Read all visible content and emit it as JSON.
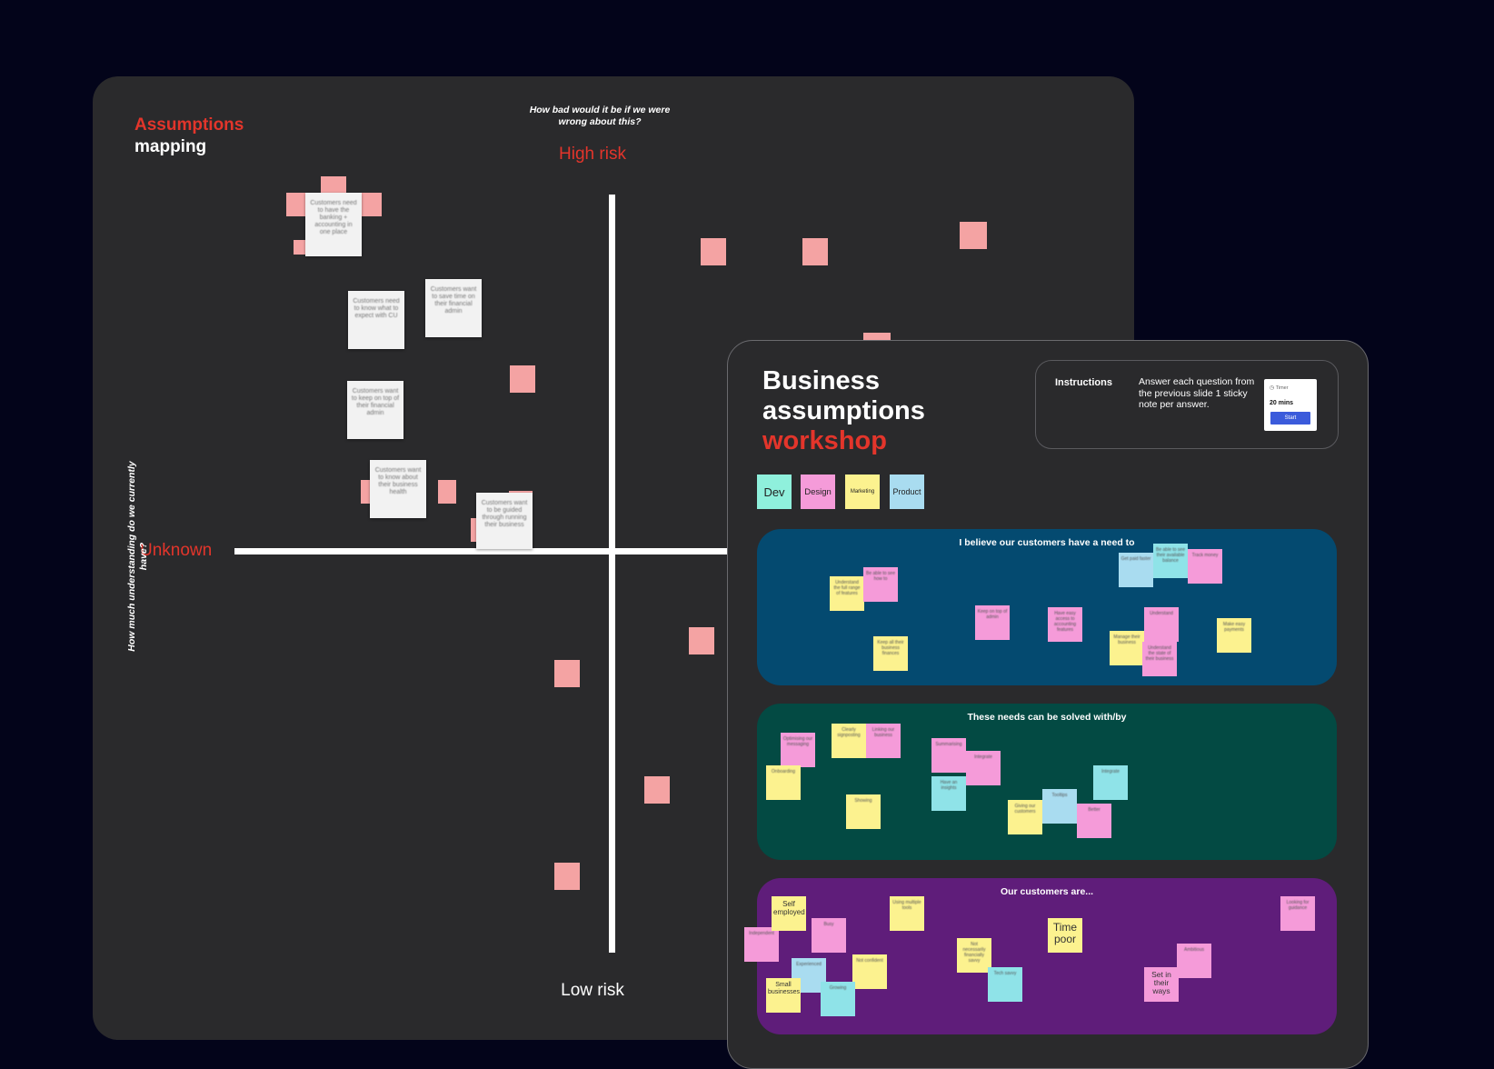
{
  "assumptions_board": {
    "title_accent": "Assumptions",
    "title_rest": "mapping",
    "top_question": "How bad would it be if we were wrong about this?",
    "high_risk_label": "High risk",
    "low_risk_label": "Low risk",
    "unknown_label": "Unknown",
    "side_question": "How much understanding do we currently have?",
    "notes": [
      "Customers need to have the banking + accounting in one place",
      "Customers want to save time on their financial admin",
      "Customers need to know what to expect with CU",
      "Customers want to keep on top of their financial admin",
      "Customers want to know about their business health",
      "Customers want to be guided through running their business"
    ]
  },
  "workshop_panel": {
    "title_line1": "Business",
    "title_line2": "assumptions",
    "title_accent": "workshop",
    "instructions_label": "Instructions",
    "instructions_text": "Answer each question from the previous slide 1 sticky note per answer.",
    "timer": {
      "label": "Timer",
      "value": "20 mins",
      "start_label": "Start"
    },
    "tags": [
      {
        "label": "Dev",
        "color": "#8ff0dc"
      },
      {
        "label": "Design",
        "color": "#f59bd9"
      },
      {
        "label": "Marketing",
        "color": "#fcf28f"
      },
      {
        "label": "Product",
        "color": "#a9dcf0"
      }
    ],
    "sections": [
      {
        "title": "I believe our customers have a need to",
        "color": "#044a70"
      },
      {
        "title": "These needs can be solved with/by",
        "color": "#034a43"
      },
      {
        "title": "Our customers are...",
        "color": "#5f1d7a"
      }
    ],
    "sticky_labels": {
      "self_employed": "Self employed",
      "time_poor": "Time poor",
      "small_businesses": "Small businesses",
      "set_in_their_ways": "Set in their ways"
    }
  }
}
